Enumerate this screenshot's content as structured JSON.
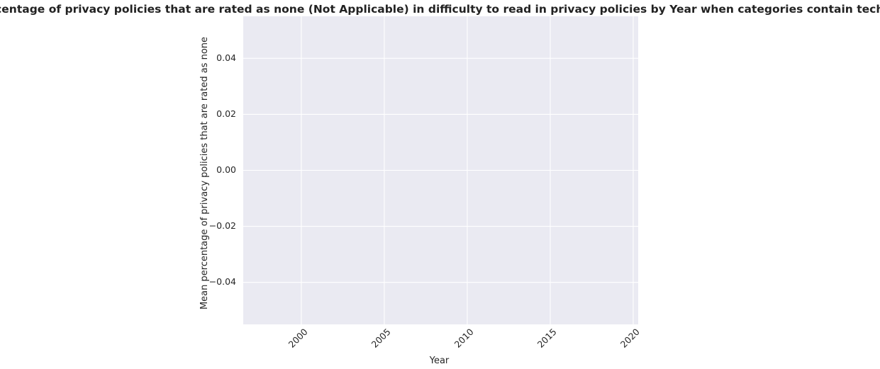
{
  "chart_data": {
    "type": "line",
    "title": "Mean percentage of privacy policies that are rated as none (Not Applicable) in difficulty to read in privacy policies by Year when categories contain tech or media",
    "xlabel": "Year",
    "ylabel": "Mean percentage of privacy policies that are rated as none",
    "x_ticks": [
      2000,
      2005,
      2010,
      2015,
      2020
    ],
    "y_ticks": [
      -0.04,
      -0.02,
      0.0,
      0.02,
      0.04
    ],
    "y_tick_labels": [
      "−0.04",
      "−0.02",
      "0.00",
      "0.02",
      "0.04"
    ],
    "xlim": [
      1996.5,
      2020.3
    ],
    "ylim": [
      -0.055,
      0.055
    ],
    "x_tick_rotation_deg": 45,
    "grid": true,
    "legend": "none",
    "series": [],
    "colors": {
      "plot_background": "#eaeaf2",
      "grid": "#ffffff",
      "text": "#262626"
    }
  }
}
